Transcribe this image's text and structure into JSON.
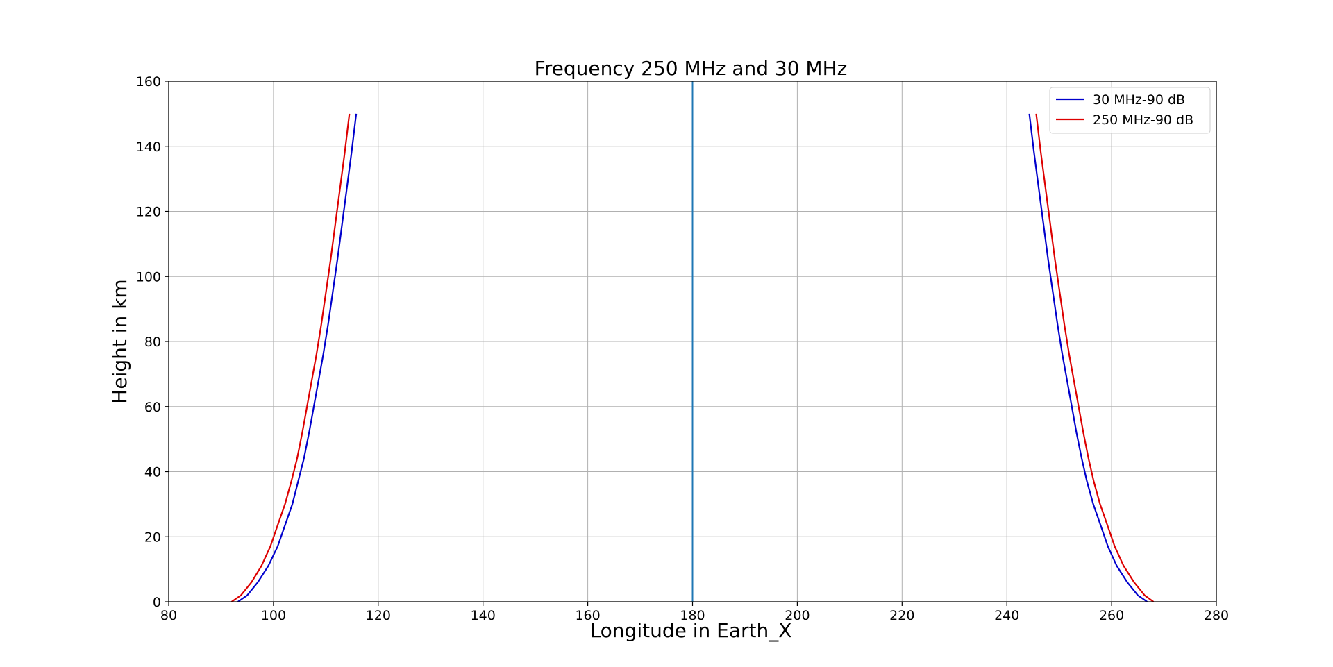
{
  "chart_data": {
    "type": "line",
    "title": "Frequency 250 MHz and 30 MHz",
    "xlabel": "Longitude in Earth_X",
    "ylabel": "Height in km",
    "xlim": [
      80,
      280
    ],
    "ylim": [
      0,
      160
    ],
    "xticks": [
      80,
      100,
      120,
      140,
      160,
      180,
      200,
      220,
      240,
      260,
      280
    ],
    "yticks": [
      0,
      20,
      40,
      60,
      80,
      100,
      120,
      140,
      160
    ],
    "grid": true,
    "legend_placement": "upper-right",
    "vline": {
      "x": 180,
      "color": "#1f77b4"
    },
    "series": [
      {
        "name": "30 MHz-90 dB",
        "color": "#0000cc",
        "segments": [
          {
            "x": [
              93.2,
              95.0,
              97.0,
              99.0,
              100.8,
              102.3,
              103.6,
              104.7,
              105.8,
              106.8,
              107.7,
              108.6,
              109.5,
              110.4,
              111.3,
              112.2,
              113.1,
              114.0,
              114.9,
              115.8
            ],
            "y": [
              0,
              2,
              6,
              11,
              17,
              24,
              30,
              37,
              44,
              52,
              60,
              68,
              76,
              85,
              95,
              105,
              116,
              127,
              138,
              150
            ]
          },
          {
            "x": [
              266.8,
              265.0,
              263.0,
              261.0,
              259.3,
              257.8,
              256.5,
              255.3,
              254.3,
              253.3,
              252.4,
              251.5,
              250.6,
              249.7,
              248.8,
              247.9,
              247.0,
              246.1,
              245.2,
              244.3
            ],
            "y": [
              0,
              2,
              6,
              11,
              17,
              24,
              30,
              37,
              44,
              52,
              60,
              68,
              76,
              85,
              95,
              105,
              116,
              127,
              138,
              150
            ]
          }
        ]
      },
      {
        "name": "250 MHz-90 dB",
        "color": "#dd0000",
        "segments": [
          {
            "x": [
              92.0,
              93.8,
              95.8,
              97.7,
              99.4,
              100.9,
              102.2,
              103.4,
              104.5,
              105.5,
              106.4,
              107.3,
              108.2,
              109.1,
              110.0,
              110.9,
              111.8,
              112.7,
              113.6,
              114.5
            ],
            "y": [
              0,
              2,
              6,
              11,
              17,
              24,
              30,
              37,
              44,
              52,
              60,
              68,
              76,
              85,
              95,
              105,
              116,
              127,
              138,
              150
            ]
          },
          {
            "x": [
              268.0,
              266.3,
              264.3,
              262.3,
              260.6,
              259.1,
              257.8,
              256.6,
              255.6,
              254.6,
              253.7,
              252.8,
              251.9,
              251.0,
              250.1,
              249.2,
              248.3,
              247.4,
              246.5,
              245.6
            ],
            "y": [
              0,
              2,
              6,
              11,
              17,
              24,
              30,
              37,
              44,
              52,
              60,
              68,
              76,
              85,
              95,
              105,
              116,
              127,
              138,
              150
            ]
          }
        ]
      }
    ]
  }
}
